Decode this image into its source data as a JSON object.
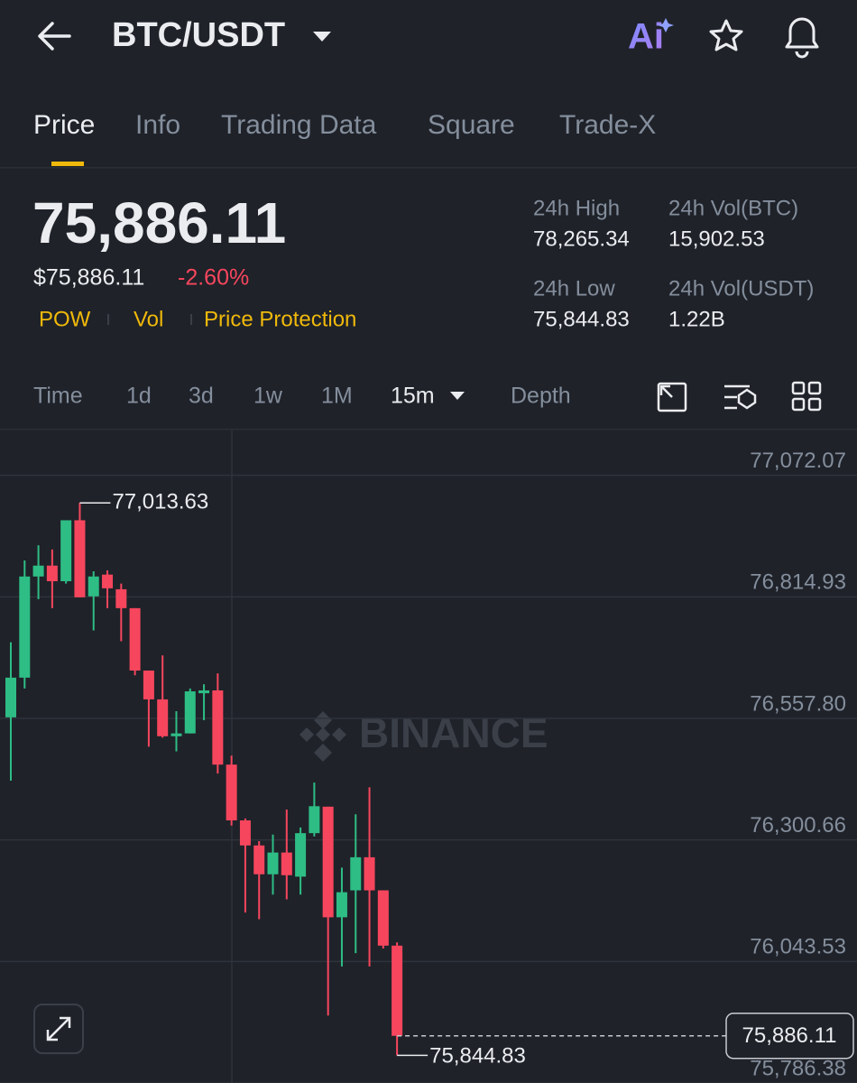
{
  "header": {
    "pair": "BTC/USDT",
    "ai_label": "Ai"
  },
  "tabs": [
    "Price",
    "Info",
    "Trading Data",
    "Square",
    "Trade-X"
  ],
  "price": {
    "last": "75,886.11",
    "fiat": "$75,886.11",
    "change": "-2.60%"
  },
  "tags": [
    "POW",
    "Vol",
    "Price Protection"
  ],
  "stats": [
    {
      "label": "24h High",
      "value": "78,265.34"
    },
    {
      "label": "24h Vol(BTC)",
      "value": "15,902.53"
    },
    {
      "label": "24h Low",
      "value": "75,844.83"
    },
    {
      "label": "24h Vol(USDT)",
      "value": "1.22B"
    }
  ],
  "intervals": [
    "Time",
    "1d",
    "3d",
    "1w",
    "1M",
    "15m",
    "Depth"
  ],
  "watermark": "BINANCE",
  "chart_data": {
    "type": "candlestick",
    "up_color": "#2ebd85",
    "down_color": "#f6465d",
    "open": [
      76560,
      76644,
      76858,
      76881,
      76848,
      76977,
      76816,
      76862,
      76831,
      76791,
      76659,
      76598,
      76520,
      76526,
      76611,
      76617,
      76460,
      76342,
      76289,
      76228,
      76274,
      76223,
      76315,
      76371,
      76137,
      76194,
      76264,
      76194,
      76077
    ],
    "high": [
      76719,
      76892,
      76924,
      76915,
      76977,
      77013.63,
      76869,
      76871,
      76843,
      76791,
      76659,
      76691,
      76573,
      76621,
      76630,
      76653,
      76479,
      76346,
      76298,
      76312,
      76365,
      76327,
      76422,
      76371,
      76242,
      76355,
      76412,
      76194,
      76084
    ],
    "low": [
      76426,
      76621,
      76810,
      76791,
      76843,
      76814,
      76744,
      76791,
      76721,
      76649,
      76498,
      76517,
      76488,
      76526,
      76554,
      76441,
      76331,
      76147,
      76133,
      76185,
      76175,
      76185,
      76308,
      75929,
      76033,
      76061,
      76033,
      76071,
      75844.83
    ],
    "close": [
      76644,
      76858,
      76881,
      76848,
      76977,
      76814,
      76858,
      76833,
      76791,
      76659,
      76598,
      76520,
      76526,
      76615,
      76617,
      76460,
      76342,
      76289,
      76228,
      76274,
      76226,
      76315,
      76372,
      76137,
      76190,
      76264,
      76194,
      76077,
      75886.11
    ],
    "ylim": [
      75786.38,
      77166.9
    ],
    "yticks": [
      {
        "value": 77072.07,
        "label": "77,072.07"
      },
      {
        "value": 76814.93,
        "label": "76,814.93"
      },
      {
        "value": 76557.8,
        "label": "76,557.80"
      },
      {
        "value": 76300.66,
        "label": "76,300.66"
      },
      {
        "value": 76043.53,
        "label": "76,043.53"
      },
      {
        "value": 75786.38,
        "label": "75,786.38"
      }
    ],
    "grid": true,
    "annotations": {
      "high": "77,013.63",
      "low": "75,844.83",
      "last": "75,886.11"
    }
  }
}
